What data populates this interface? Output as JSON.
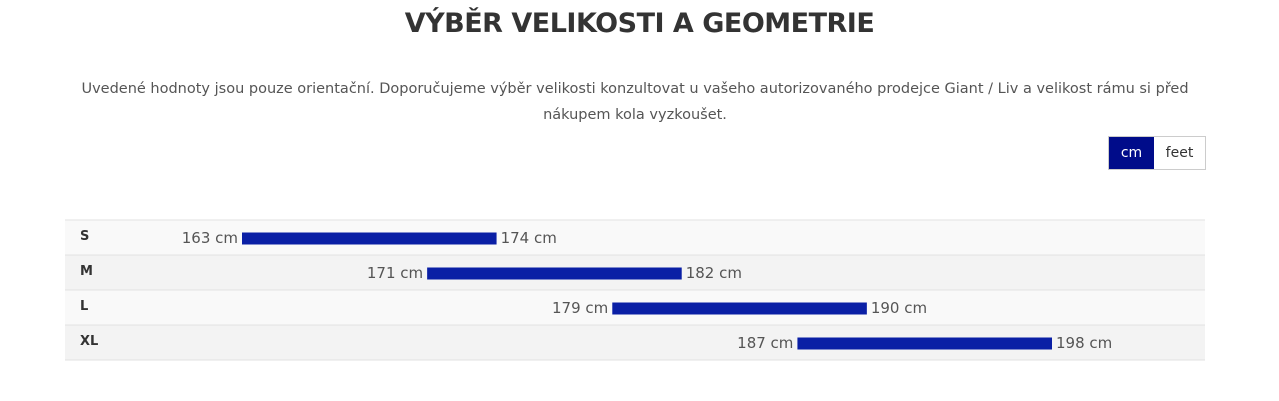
{
  "header": {
    "title": "VÝBĚR VELIKOSTI A GEOMETRIE",
    "description": "Uvedené hodnoty jsou pouze orientační. Doporučujeme výběr velikosti konzultovat u vašeho autorizovaného prodejce Giant / Liv a velikost rámu si před nákupem kola vyzkoušet."
  },
  "unit_toggle": [
    "cm",
    "feet"
  ],
  "chart_data": {
    "type": "range",
    "categories": [
      "S",
      "M",
      "L",
      "XL"
    ],
    "lows": [
      163,
      171,
      179,
      187
    ],
    "highs": [
      174,
      182,
      190,
      198
    ],
    "low_labels": [
      "163 cm",
      "171 cm",
      "179 cm",
      "187 cm"
    ],
    "high_labels": [
      "174 cm",
      "182 cm",
      "190 cm",
      "198 cm"
    ],
    "color": "#0a1fa5"
  }
}
